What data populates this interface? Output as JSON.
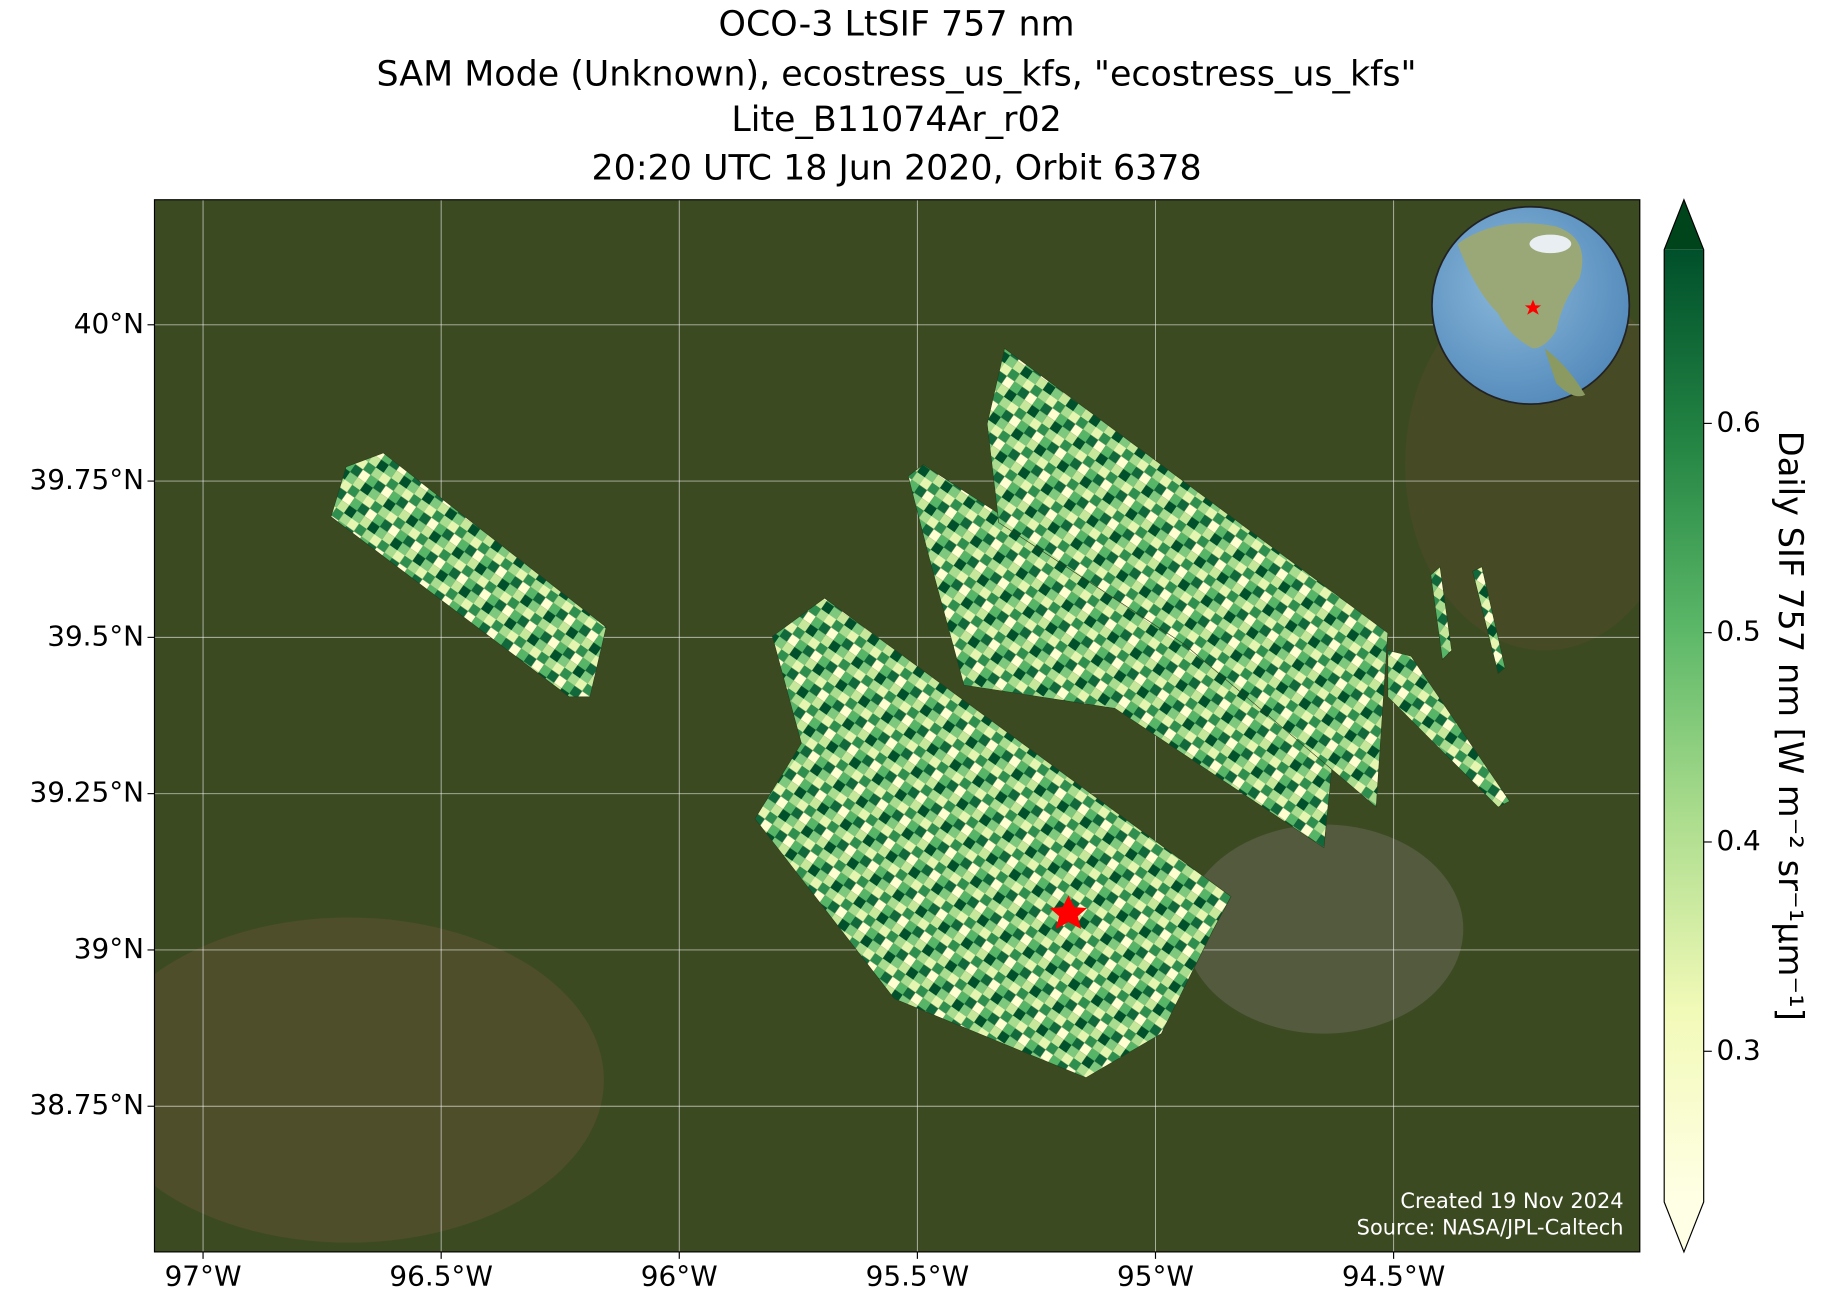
{
  "chart_data": {
    "type": "map",
    "title": [
      "OCO-3 LtSIF 757 nm",
      "SAM Mode (Unknown), ecostress_us_kfs, \"ecostress_us_kfs\"",
      "Lite_B11074Ar_r02",
      "20:20 UTC 18 Jun 2020, Orbit 6378"
    ],
    "xlim": [
      -97.102,
      -93.983
    ],
    "ylim": [
      38.517,
      40.2
    ],
    "xticks": [
      {
        "value": -97,
        "label": "97°W"
      },
      {
        "value": -96.5,
        "label": "96.5°W"
      },
      {
        "value": -96,
        "label": "96°W"
      },
      {
        "value": -95.5,
        "label": "95.5°W"
      },
      {
        "value": -95,
        "label": "95°W"
      },
      {
        "value": -94.5,
        "label": "94.5°W"
      }
    ],
    "yticks": [
      {
        "value": 40,
        "label": "40°N"
      },
      {
        "value": 39.75,
        "label": "39.75°N"
      },
      {
        "value": 39.5,
        "label": "39.5°N"
      },
      {
        "value": 39.25,
        "label": "39.25°N"
      },
      {
        "value": 39,
        "label": "39°N"
      },
      {
        "value": 38.75,
        "label": "38.75°N"
      }
    ],
    "grid": true,
    "colorbar": {
      "label": "Daily SIF 757 nm [W m⁻² sr⁻¹μm⁻¹]",
      "clim": [
        0.228,
        0.683
      ],
      "ticks": [
        0.3,
        0.4,
        0.5,
        0.6
      ]
    },
    "annotations": [
      "Created 19 Nov 2024",
      "Source: NASA/JPL-Caltech"
    ]
  }
}
